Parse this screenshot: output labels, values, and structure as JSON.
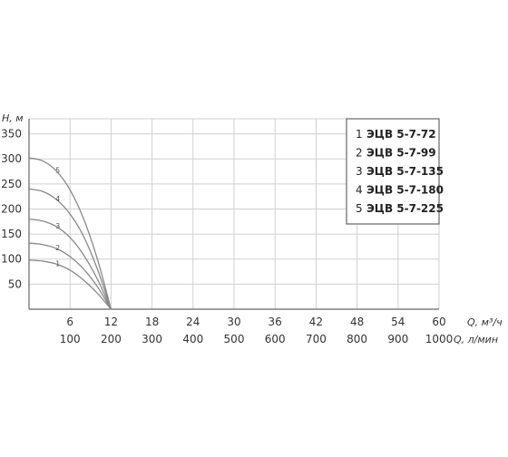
{
  "chart_data": {
    "type": "line",
    "ylabel": "H, м",
    "xlabel_primary": "Q, м³/ч",
    "xlabel_secondary": "Q, л/мин",
    "x_ticks_primary": [
      6,
      12,
      18,
      24,
      30,
      36,
      42,
      48,
      54,
      60
    ],
    "x_ticks_secondary": [
      100,
      200,
      300,
      400,
      500,
      600,
      700,
      800,
      900,
      1000
    ],
    "y_ticks": [
      50,
      100,
      150,
      200,
      250,
      300,
      350
    ],
    "xlim": [
      0,
      60
    ],
    "ylim": [
      0,
      380
    ],
    "grid": true,
    "legend_position": "top-right",
    "series": [
      {
        "name": "ЭЦВ 5-7-72",
        "label": "1",
        "x": [
          0,
          2,
          4,
          6,
          8,
          10,
          12
        ],
        "y": [
          98,
          96,
          90,
          78,
          58,
          32,
          0
        ]
      },
      {
        "name": "ЭЦВ 5-7-99",
        "label": "2",
        "x": [
          0,
          2,
          4,
          6,
          8,
          10,
          12
        ],
        "y": [
          132,
          129,
          121,
          105,
          80,
          45,
          0
        ]
      },
      {
        "name": "ЭЦВ 5-7-135",
        "label": "3",
        "x": [
          0,
          2,
          4,
          6,
          8,
          10,
          12
        ],
        "y": [
          180,
          176,
          165,
          143,
          108,
          60,
          0
        ]
      },
      {
        "name": "ЭЦВ 5-7-180",
        "label": "4",
        "x": [
          0,
          2,
          4,
          6,
          8,
          10,
          12
        ],
        "y": [
          240,
          235,
          219,
          190,
          145,
          80,
          0
        ]
      },
      {
        "name": "ЭЦВ 5-7-225",
        "label": "5",
        "x": [
          0,
          2,
          4,
          6,
          8,
          10,
          12
        ],
        "y": [
          302,
          296,
          276,
          238,
          180,
          100,
          0
        ]
      }
    ]
  }
}
